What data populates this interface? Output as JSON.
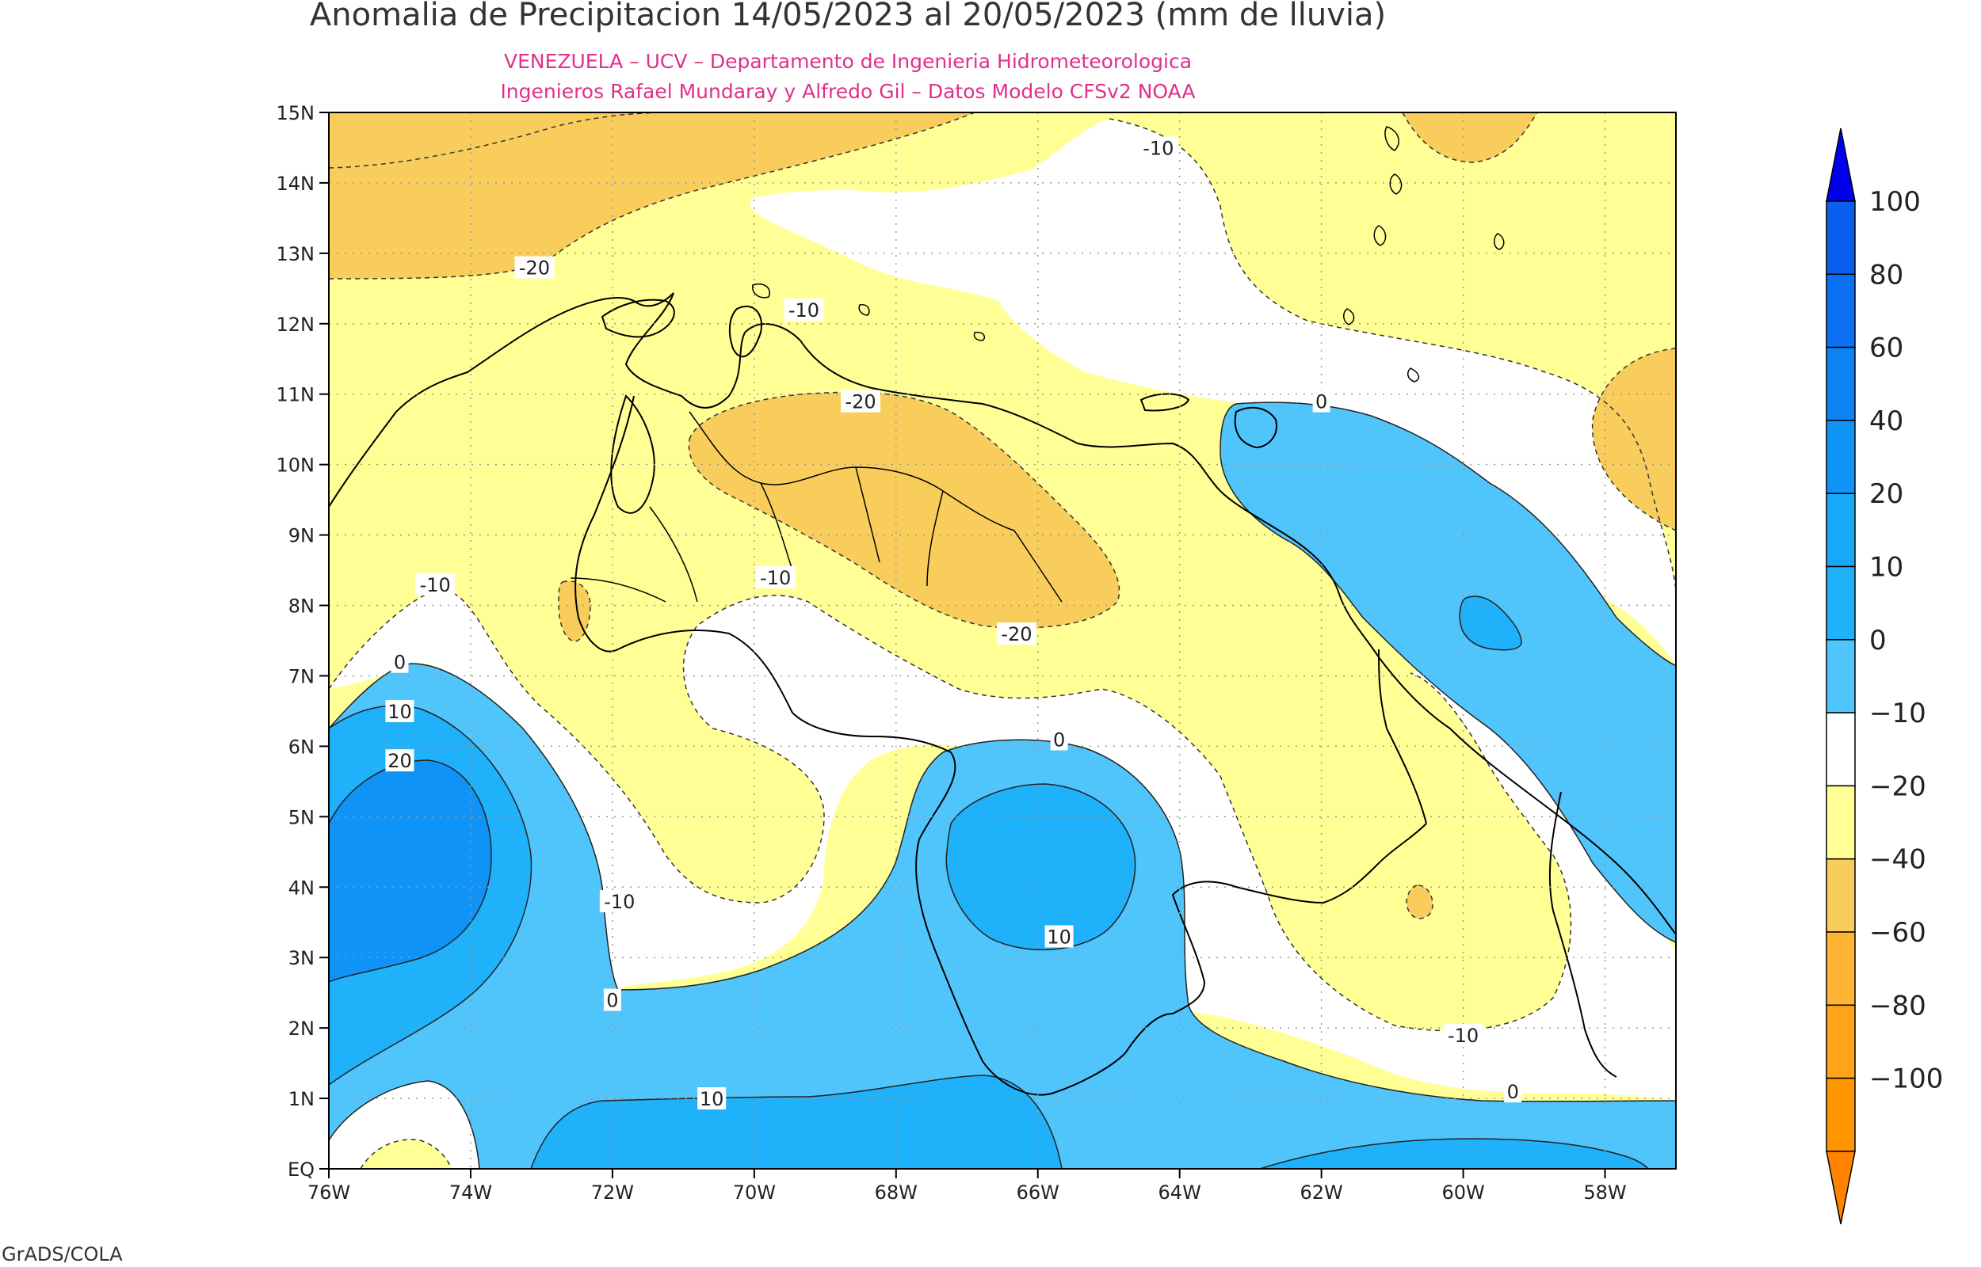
{
  "title": "Anomalia de Precipitacion 14/05/2023 al 20/05/2023 (mm de lluvia)",
  "subtitle_1": "VENEZUELA – UCV – Departamento de Ingenieria Hidrometeorologica",
  "subtitle_2": "Ingenieros Rafael Mundaray y Alfredo Gil – Datos Modelo CFSv2 NOAA",
  "footer": "GrADS/COLA",
  "map": {
    "lon_range": [
      -76,
      -57
    ],
    "lat_range": [
      0,
      15
    ],
    "lon_ticks": [
      {
        "value": -76,
        "label": "76W"
      },
      {
        "value": -74,
        "label": "74W"
      },
      {
        "value": -72,
        "label": "72W"
      },
      {
        "value": -70,
        "label": "70W"
      },
      {
        "value": -68,
        "label": "68W"
      },
      {
        "value": -66,
        "label": "66W"
      },
      {
        "value": -64,
        "label": "64W"
      },
      {
        "value": -62,
        "label": "62W"
      },
      {
        "value": -60,
        "label": "60W"
      },
      {
        "value": -58,
        "label": "58W"
      }
    ],
    "lat_ticks": [
      {
        "value": 0,
        "label": "EQ"
      },
      {
        "value": 1,
        "label": "1N"
      },
      {
        "value": 2,
        "label": "2N"
      },
      {
        "value": 3,
        "label": "3N"
      },
      {
        "value": 4,
        "label": "4N"
      },
      {
        "value": 5,
        "label": "5N"
      },
      {
        "value": 6,
        "label": "6N"
      },
      {
        "value": 7,
        "label": "7N"
      },
      {
        "value": 8,
        "label": "8N"
      },
      {
        "value": 9,
        "label": "9N"
      },
      {
        "value": 10,
        "label": "10N"
      },
      {
        "value": 11,
        "label": "11N"
      },
      {
        "value": 12,
        "label": "12N"
      },
      {
        "value": 13,
        "label": "13N"
      },
      {
        "value": 14,
        "label": "14N"
      },
      {
        "value": 15,
        "label": "15N"
      }
    ],
    "grid": true,
    "contour_labels": [
      {
        "text": "-10",
        "lon": -64.3,
        "lat": 14.5
      },
      {
        "text": "-20",
        "lon": -73.1,
        "lat": 12.8
      },
      {
        "text": "-10",
        "lon": -69.3,
        "lat": 12.2
      },
      {
        "text": "-20",
        "lon": -68.5,
        "lat": 10.9
      },
      {
        "text": "0",
        "lon": -62.0,
        "lat": 10.9
      },
      {
        "text": "-10",
        "lon": -69.7,
        "lat": 8.4
      },
      {
        "text": "-10",
        "lon": -74.5,
        "lat": 8.3
      },
      {
        "text": "-20",
        "lon": -66.3,
        "lat": 7.6
      },
      {
        "text": "0",
        "lon": -75.0,
        "lat": 7.2
      },
      {
        "text": "10",
        "lon": -75.0,
        "lat": 6.5
      },
      {
        "text": "20",
        "lon": -75.0,
        "lat": 5.8
      },
      {
        "text": "0",
        "lon": -65.7,
        "lat": 6.1
      },
      {
        "text": "-10",
        "lon": -71.9,
        "lat": 3.8
      },
      {
        "text": "10",
        "lon": -65.7,
        "lat": 3.3
      },
      {
        "text": "0",
        "lon": -72.0,
        "lat": 2.4
      },
      {
        "text": "-10",
        "lon": -60.0,
        "lat": 1.9
      },
      {
        "text": "0",
        "lon": -59.3,
        "lat": 1.1
      },
      {
        "text": "10",
        "lon": -70.6,
        "lat": 1.0
      }
    ]
  },
  "colorbar": {
    "labels": [
      "100",
      "80",
      "60",
      "40",
      "20",
      "10",
      "0",
      "−10",
      "−20",
      "−40",
      "−60",
      "−80",
      "−100"
    ],
    "colors": {
      "top_arrow": "#0000ee",
      "bins": [
        "#0a5ff0",
        "#0b70f2",
        "#0d82f4",
        "#0f93f6",
        "#18a8f8",
        "#1fb2fb",
        "#50c5fb",
        "#ffffff",
        "#ffff96",
        "#f9cd5c",
        "#ffb533",
        "#ffa319",
        "#ff9600"
      ],
      "bottom_arrow": "#ff8300"
    }
  },
  "field_colors": {
    "pos_20_40": "#0f93f6",
    "pos_10_20": "#1fb2fb",
    "pos_0_10": "#50c5fb",
    "neg_0_10": "#ffffff",
    "neg_10_20": "#ffff96",
    "neg_20_40": "#f9cd5c"
  }
}
